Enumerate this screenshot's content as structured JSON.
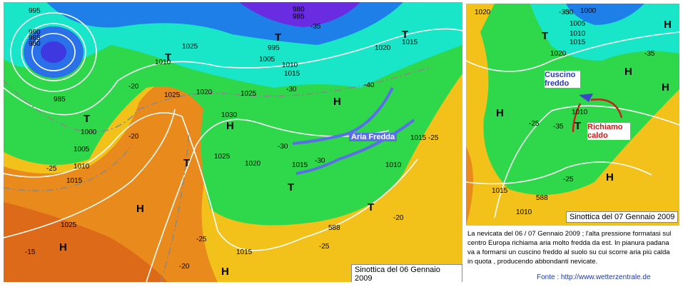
{
  "left_map": {
    "caption": "Sinottica del 06 Gennaio 2009",
    "annotation": "Aria Fredda",
    "labels": [
      "995",
      "990",
      "985",
      "980",
      "985",
      "T",
      "1000",
      "1005",
      "-25",
      "1010",
      "1015",
      "H",
      "1025",
      "H",
      "-15",
      "-20",
      "T",
      "1010",
      "1025",
      "-20",
      "1025",
      "1020",
      "1030",
      "H",
      "T",
      "1025",
      "1020",
      "-30",
      "1015",
      "-30",
      "T",
      "T",
      "1010",
      "1015",
      "-25",
      "H",
      "1025",
      "-30",
      "-40",
      "T",
      "1005",
      "1010",
      "1015",
      "995",
      "1020",
      "T",
      "1015",
      "H",
      "-20",
      "-25",
      "1015",
      "-25",
      "-20",
      "980",
      "985",
      "-35",
      "588"
    ]
  },
  "right_map": {
    "caption": "Sinottica del 07 Gennaio 2009",
    "annotations": [
      "Cuscino freddo",
      "Richiamo caldo"
    ],
    "labels": [
      "1020",
      "-35",
      "1000",
      "1005",
      "1010",
      "1015",
      "1020",
      "T",
      "H",
      "-35",
      "H",
      "H",
      "1010",
      "-35",
      "-25",
      "H",
      "T",
      "-25",
      "H",
      "1015",
      "1010",
      "588",
      "-30"
    ]
  },
  "description": "La nevicata del 06 / 07 Gennaio 2009 ; l'alta pressione formatasi sul centro Europa richiama aria molto fredda da est. In pianura padana va a formarsi un cuscino freddo al suolo su cui scorre aria più calda in quota , producendo abbondanti nevicate.",
  "source": "Fonte : http://www.wetterzentrale.de"
}
